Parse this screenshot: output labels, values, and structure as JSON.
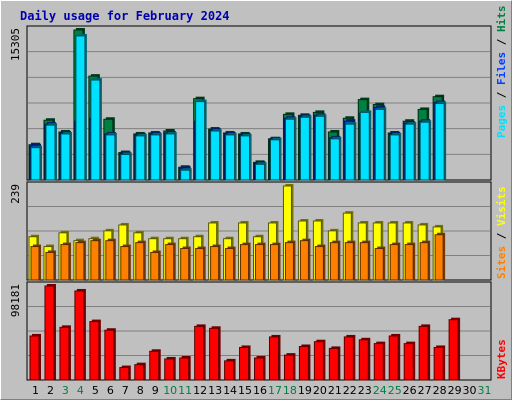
{
  "title": "Daily usage for February 2024",
  "colors": {
    "background": "#c0c0c0",
    "title": "#0000b0",
    "hits": "#008040",
    "files": "#0040ff",
    "pages": "#00e0ff",
    "visits": "#ffff00",
    "sites": "#ff8000",
    "kbytes": "#ff0000",
    "separator": "#000000",
    "weekday_label": "#000000",
    "weekend_label": "#008040"
  },
  "chart_data": [
    {
      "type": "bar",
      "panel": "top",
      "categories": [
        "1",
        "2",
        "3",
        "4",
        "5",
        "6",
        "7",
        "8",
        "9",
        "10",
        "11",
        "12",
        "13",
        "14",
        "15",
        "16",
        "17",
        "18",
        "19",
        "20",
        "21",
        "22",
        "23",
        "24",
        "25",
        "26",
        "27",
        "28",
        "29",
        "30",
        "31"
      ],
      "weekend_days": [
        "3",
        "4",
        "10",
        "11",
        "17",
        "18",
        "24",
        "25",
        "31"
      ],
      "ymax_label": "15305",
      "ylim": [
        0,
        15305
      ],
      "right_legend": [
        "Pages",
        "Files",
        "Hits"
      ],
      "series": [
        {
          "name": "Hits",
          "values": [
            3600,
            6100,
            4900,
            15305,
            10600,
            6200,
            2800,
            4700,
            4800,
            5000,
            1300,
            8300,
            5200,
            4800,
            4700,
            1800,
            4200,
            6700,
            6600,
            6900,
            4900,
            6300,
            8200,
            7700,
            4800,
            6000,
            7200,
            8500,
            0,
            0,
            0
          ]
        },
        {
          "name": "Files",
          "values": [
            3500,
            5700,
            4800,
            6000,
            6300,
            4700,
            2700,
            4600,
            4700,
            4800,
            1200,
            6000,
            5100,
            4700,
            4600,
            1700,
            4200,
            6300,
            6500,
            6600,
            4300,
            6000,
            6800,
            7400,
            4700,
            5800,
            6000,
            7900,
            0,
            0,
            0
          ]
        },
        {
          "name": "Pages",
          "values": [
            3300,
            5600,
            4700,
            14700,
            10200,
            4600,
            2600,
            4500,
            4600,
            4700,
            1000,
            8000,
            5000,
            4600,
            4500,
            1600,
            4100,
            6200,
            6400,
            6500,
            4200,
            5700,
            6900,
            7200,
            4600,
            5700,
            5900,
            7800,
            0,
            0,
            0
          ]
        }
      ]
    },
    {
      "type": "bar",
      "panel": "middle",
      "categories": [
        "1",
        "2",
        "3",
        "4",
        "5",
        "6",
        "7",
        "8",
        "9",
        "10",
        "11",
        "12",
        "13",
        "14",
        "15",
        "16",
        "17",
        "18",
        "19",
        "20",
        "21",
        "22",
        "23",
        "24",
        "25",
        "26",
        "27",
        "28",
        "29",
        "30",
        "31"
      ],
      "ymax_label": "239",
      "ylim": [
        0,
        239
      ],
      "right_legend": [
        "Sites",
        "Visits"
      ],
      "series": [
        {
          "name": "Visits",
          "values": [
            110,
            85,
            120,
            100,
            105,
            125,
            140,
            120,
            105,
            105,
            105,
            110,
            145,
            105,
            145,
            110,
            145,
            239,
            150,
            150,
            125,
            170,
            145,
            145,
            145,
            145,
            140,
            135,
            0,
            0,
            0
          ]
        },
        {
          "name": "Sites",
          "values": [
            85,
            70,
            90,
            95,
            100,
            100,
            85,
            95,
            70,
            90,
            80,
            80,
            85,
            80,
            90,
            90,
            90,
            95,
            100,
            85,
            95,
            95,
            95,
            80,
            90,
            90,
            95,
            115,
            0,
            0,
            0
          ]
        }
      ]
    },
    {
      "type": "bar",
      "panel": "bottom",
      "categories": [
        "1",
        "2",
        "3",
        "4",
        "5",
        "6",
        "7",
        "8",
        "9",
        "10",
        "11",
        "12",
        "13",
        "14",
        "15",
        "16",
        "17",
        "18",
        "19",
        "20",
        "21",
        "22",
        "23",
        "24",
        "25",
        "26",
        "27",
        "28",
        "29",
        "30",
        "31"
      ],
      "ymax_label": "98181",
      "ylim": [
        0,
        98181
      ],
      "right_legend": [
        "KBytes"
      ],
      "series": [
        {
          "name": "KBytes",
          "values": [
            46000,
            98181,
            55000,
            93000,
            61000,
            52000,
            13000,
            16000,
            30000,
            22000,
            23000,
            56000,
            54000,
            20000,
            34000,
            23000,
            45000,
            26000,
            35000,
            40000,
            33000,
            45000,
            42000,
            38000,
            46000,
            38000,
            56000,
            34000,
            63000,
            0,
            0
          ]
        }
      ]
    }
  ]
}
